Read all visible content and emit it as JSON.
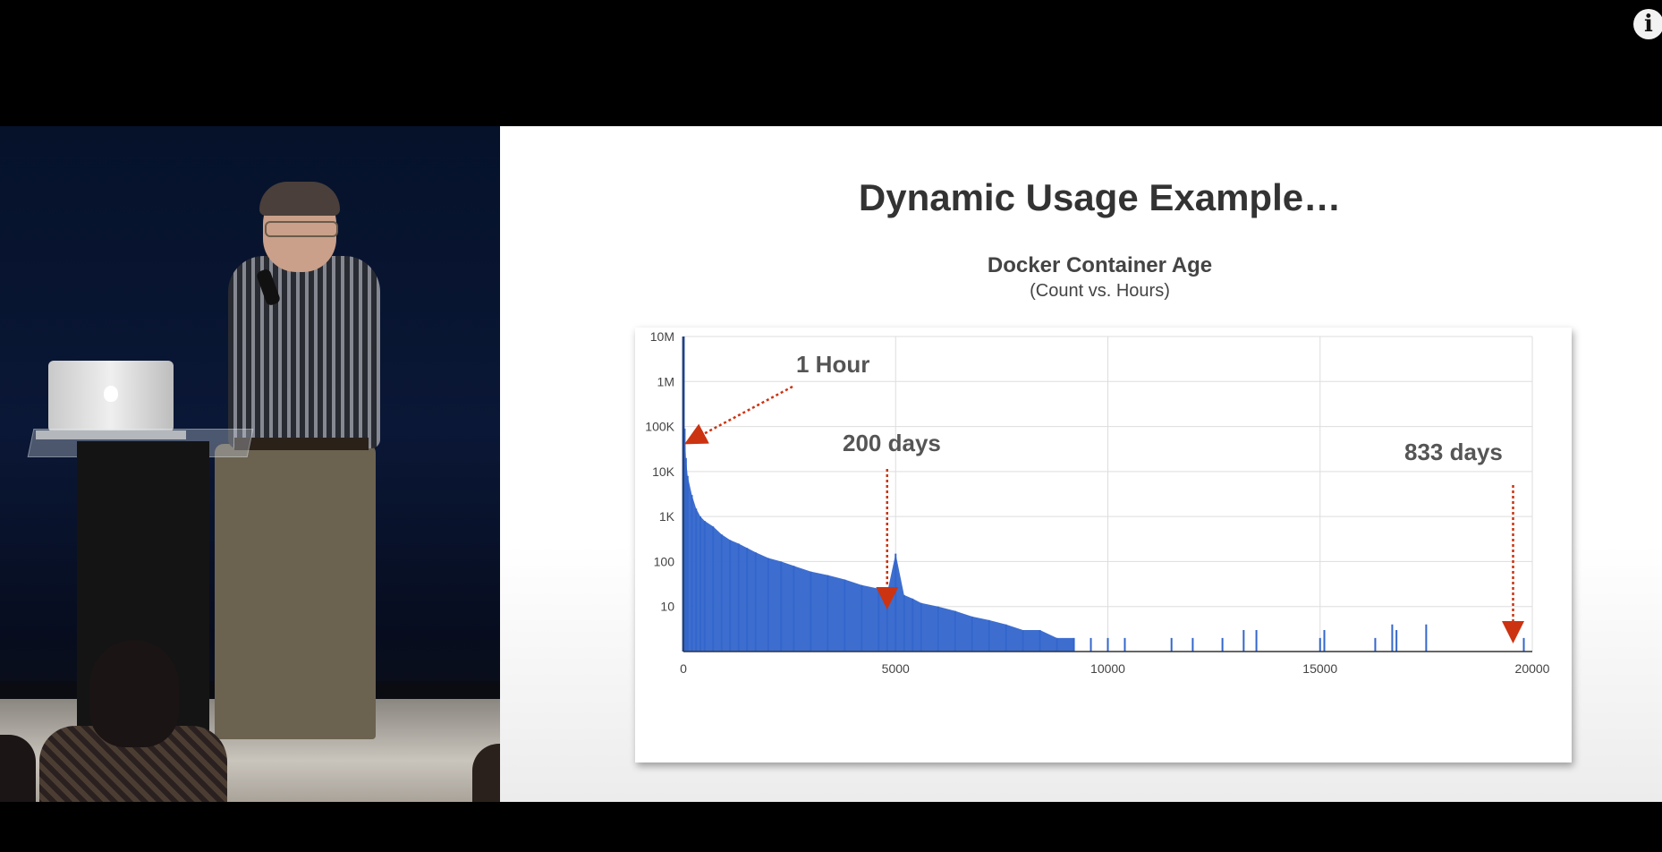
{
  "player": {
    "info_icon": "info-icon",
    "info_label": "i"
  },
  "slide": {
    "title": "Dynamic Usage Example…",
    "chart_title": "Docker Container Age",
    "chart_subtitle": "(Count vs. Hours)"
  },
  "chart_data": {
    "type": "bar",
    "title": "Docker Container Age",
    "subtitle": "(Count vs. Hours)",
    "xlim": [
      0,
      20000
    ],
    "x_ticks": [
      0,
      5000,
      10000,
      15000,
      20000
    ],
    "x_tick_labels": [
      "0",
      "5000",
      "10000",
      "15000",
      "20000"
    ],
    "y_scale": "log",
    "ylim": [
      1,
      10000000
    ],
    "y_ticks": [
      10,
      100,
      1000,
      10000,
      100000,
      1000000,
      10000000
    ],
    "y_tick_labels": [
      "10",
      "100",
      "1K",
      "10K",
      "100K",
      "1M",
      "10M"
    ],
    "grid": true,
    "bar_color": "#3366cc",
    "annotation_color": "#cc3311",
    "x": [
      0,
      30,
      60,
      100,
      200,
      300,
      400,
      500,
      700,
      900,
      1100,
      1300,
      1500,
      1700,
      2000,
      2300,
      2600,
      3000,
      3400,
      3800,
      4200,
      4600,
      4800,
      5000,
      5200,
      5400,
      5600,
      6000,
      6400,
      6800,
      7200,
      7600,
      8000,
      8400,
      8800,
      9200,
      9600,
      10000,
      10400,
      11500,
      12000,
      12700,
      13200,
      13500,
      15000,
      15100,
      16300,
      16700,
      16800,
      17500,
      19800
    ],
    "values": [
      10000000,
      90000,
      20000,
      8000,
      3000,
      1500,
      1000,
      800,
      600,
      400,
      300,
      250,
      200,
      160,
      120,
      100,
      80,
      60,
      50,
      40,
      30,
      25,
      20,
      150,
      18,
      15,
      12,
      10,
      8,
      6,
      5,
      4,
      3,
      3,
      2,
      2,
      2,
      2,
      2,
      2,
      2,
      2,
      3,
      3,
      2,
      3,
      2,
      4,
      3,
      4,
      2
    ],
    "annotations": [
      {
        "label": "1 Hour",
        "x": 30
      },
      {
        "label": "200 days",
        "x": 4800
      },
      {
        "label": "833 days",
        "x": 19800
      }
    ]
  }
}
